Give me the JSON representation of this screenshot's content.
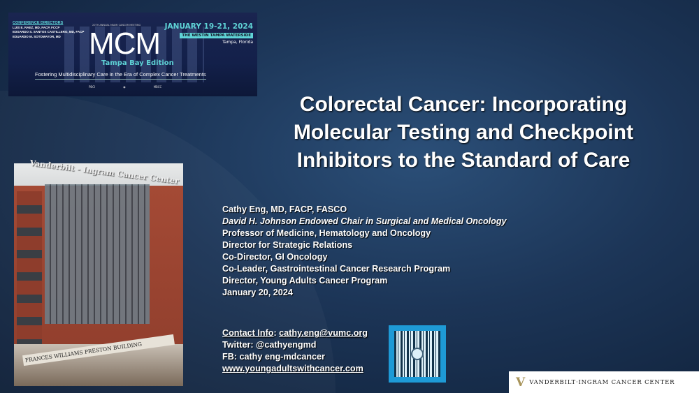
{
  "banner": {
    "directors_heading": "CONFERENCE DIRECTORS",
    "directors": [
      "LUIS E. RAEZ, MD, FACP, FCCP",
      "EDGARDO S. SANTOS CASTILLERO, MD, FACP",
      "EDUARDO M. SOTOMAYOR, MD"
    ],
    "meeting_line": "20TH ANNUAL MIAMI CANCER MEETING",
    "logo": "MCM",
    "edition": "Tampa Bay Edition",
    "tagline": "Fostering Multidisciplinary Care in the Era of Complex Cancer Treatments",
    "dates": "JANUARY 19-21, 2024",
    "venue": "THE WESTIN TAMPA WATERSIDE",
    "city": "Tampa, Florida",
    "sponsors": [
      "PBCI",
      "",
      "MBCC"
    ]
  },
  "title": "Colorectal Cancer: Incorporating Molecular Testing and Checkpoint Inhibitors to the Standard of Care",
  "photo": {
    "sign": "Vanderbilt - Ingram Cancer Center",
    "building_banner": "FRANCES WILLIAMS PRESTON BUILDING"
  },
  "speaker": {
    "name": "Cathy Eng, MD, FACP, FASCO",
    "chair": "David H. Johnson Endowed Chair in Surgical and Medical  Oncology",
    "roles": [
      "Professor of Medicine, Hematology and Oncology",
      "Director for Strategic Relations",
      "Co-Director, GI Oncology",
      "Co-Leader, Gastrointestinal Cancer Research Program",
      "Director, Young Adults Cancer Program"
    ],
    "date": "January 20, 2024"
  },
  "contact": {
    "label": "Contact Info",
    "email": "cathy.eng@vumc.org",
    "twitter": "Twitter: @cathyengmd",
    "fb": "FB: cathy eng-mdcancer",
    "website": "www.youngadultswithcancer.com"
  },
  "footer_logo": {
    "mark": "V",
    "text": "VANDERBILT·INGRAM CANCER CENTER"
  },
  "colors": {
    "background": "#1c3557",
    "accent": "#5fd3d6",
    "qr_border": "#1e9ad6",
    "gold": "#a8945a"
  }
}
